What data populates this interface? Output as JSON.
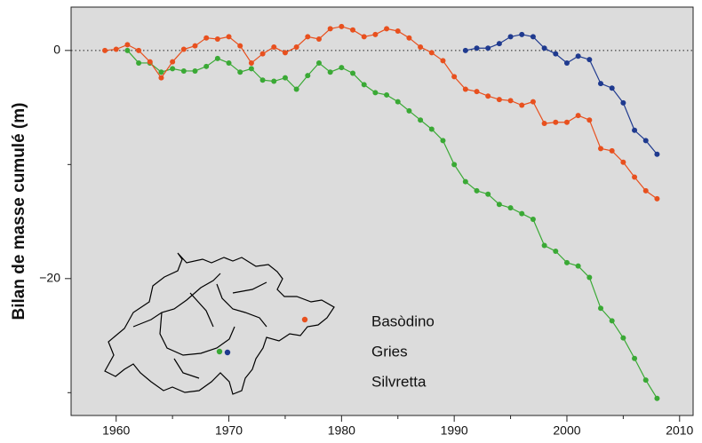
{
  "chart_data": {
    "type": "line",
    "y_label": "Bilan de masse cumulé (m)",
    "x": [
      1959,
      1960,
      1961,
      1962,
      1963,
      1964,
      1965,
      1966,
      1967,
      1968,
      1969,
      1970,
      1971,
      1972,
      1973,
      1974,
      1975,
      1976,
      1977,
      1978,
      1979,
      1980,
      1981,
      1982,
      1983,
      1984,
      1985,
      1986,
      1987,
      1988,
      1989,
      1990,
      1991,
      1992,
      1993,
      1994,
      1995,
      1996,
      1997,
      1998,
      1999,
      2000,
      2001,
      2002,
      2003,
      2004,
      2005,
      2006,
      2007,
      2008
    ],
    "series": [
      {
        "name": "Basòdino",
        "color": "#1f3a8f",
        "values": [
          null,
          null,
          null,
          null,
          null,
          null,
          null,
          null,
          null,
          null,
          null,
          null,
          null,
          null,
          null,
          null,
          null,
          null,
          null,
          null,
          null,
          null,
          null,
          null,
          null,
          null,
          null,
          null,
          null,
          null,
          null,
          null,
          0.0,
          0.2,
          0.2,
          0.6,
          1.2,
          1.4,
          1.2,
          0.2,
          -0.3,
          -1.1,
          -0.5,
          -0.8,
          -2.9,
          -3.3,
          -4.6,
          -7.0,
          -7.9,
          -9.1
        ]
      },
      {
        "name": "Gries",
        "color": "#3aa935",
        "values": [
          null,
          null,
          0.0,
          -1.1,
          -1.1,
          -1.9,
          -1.6,
          -1.8,
          -1.8,
          -1.4,
          -0.7,
          -1.1,
          -1.9,
          -1.6,
          -2.6,
          -2.7,
          -2.4,
          -3.4,
          -2.2,
          -1.1,
          -1.9,
          -1.5,
          -2.0,
          -3.0,
          -3.7,
          -3.9,
          -4.5,
          -5.3,
          -6.1,
          -6.9,
          -7.9,
          -10.0,
          -11.5,
          -12.3,
          -12.6,
          -13.5,
          -13.8,
          -14.3,
          -14.8,
          -17.1,
          -17.6,
          -18.6,
          -18.9,
          -19.9,
          -22.6,
          -23.7,
          -25.2,
          -27.0,
          -28.9,
          -30.5
        ]
      },
      {
        "name": "Silvretta",
        "color": "#e8501e",
        "values": [
          0.0,
          0.1,
          0.5,
          0.0,
          -1.0,
          -2.4,
          -1.0,
          0.1,
          0.4,
          1.1,
          1.0,
          1.2,
          0.4,
          -1.1,
          -0.3,
          0.3,
          -0.2,
          0.3,
          1.2,
          1.0,
          1.9,
          2.1,
          1.8,
          1.2,
          1.4,
          1.9,
          1.7,
          1.1,
          0.3,
          -0.2,
          -0.9,
          -2.3,
          -3.4,
          -3.6,
          -4.0,
          -4.3,
          -4.4,
          -4.8,
          -4.5,
          -6.4,
          -6.3,
          -6.3,
          -5.7,
          -6.1,
          -8.6,
          -8.8,
          -9.8,
          -11.1,
          -12.3,
          -13.0
        ]
      }
    ],
    "xlim": [
      1956,
      2011.2
    ],
    "ylim": [
      -32,
      3.8
    ],
    "xticks": [
      1960,
      1970,
      1980,
      1990,
      2000,
      2010
    ],
    "xminorticks": [
      1965,
      1975,
      1985,
      1995,
      2005
    ],
    "yticks": [
      0,
      {
        "value": -20,
        "label": "−20"
      }
    ],
    "yminorticks": [
      -10,
      -30
    ],
    "zero_line": true,
    "background": "#dcdcdc"
  }
}
